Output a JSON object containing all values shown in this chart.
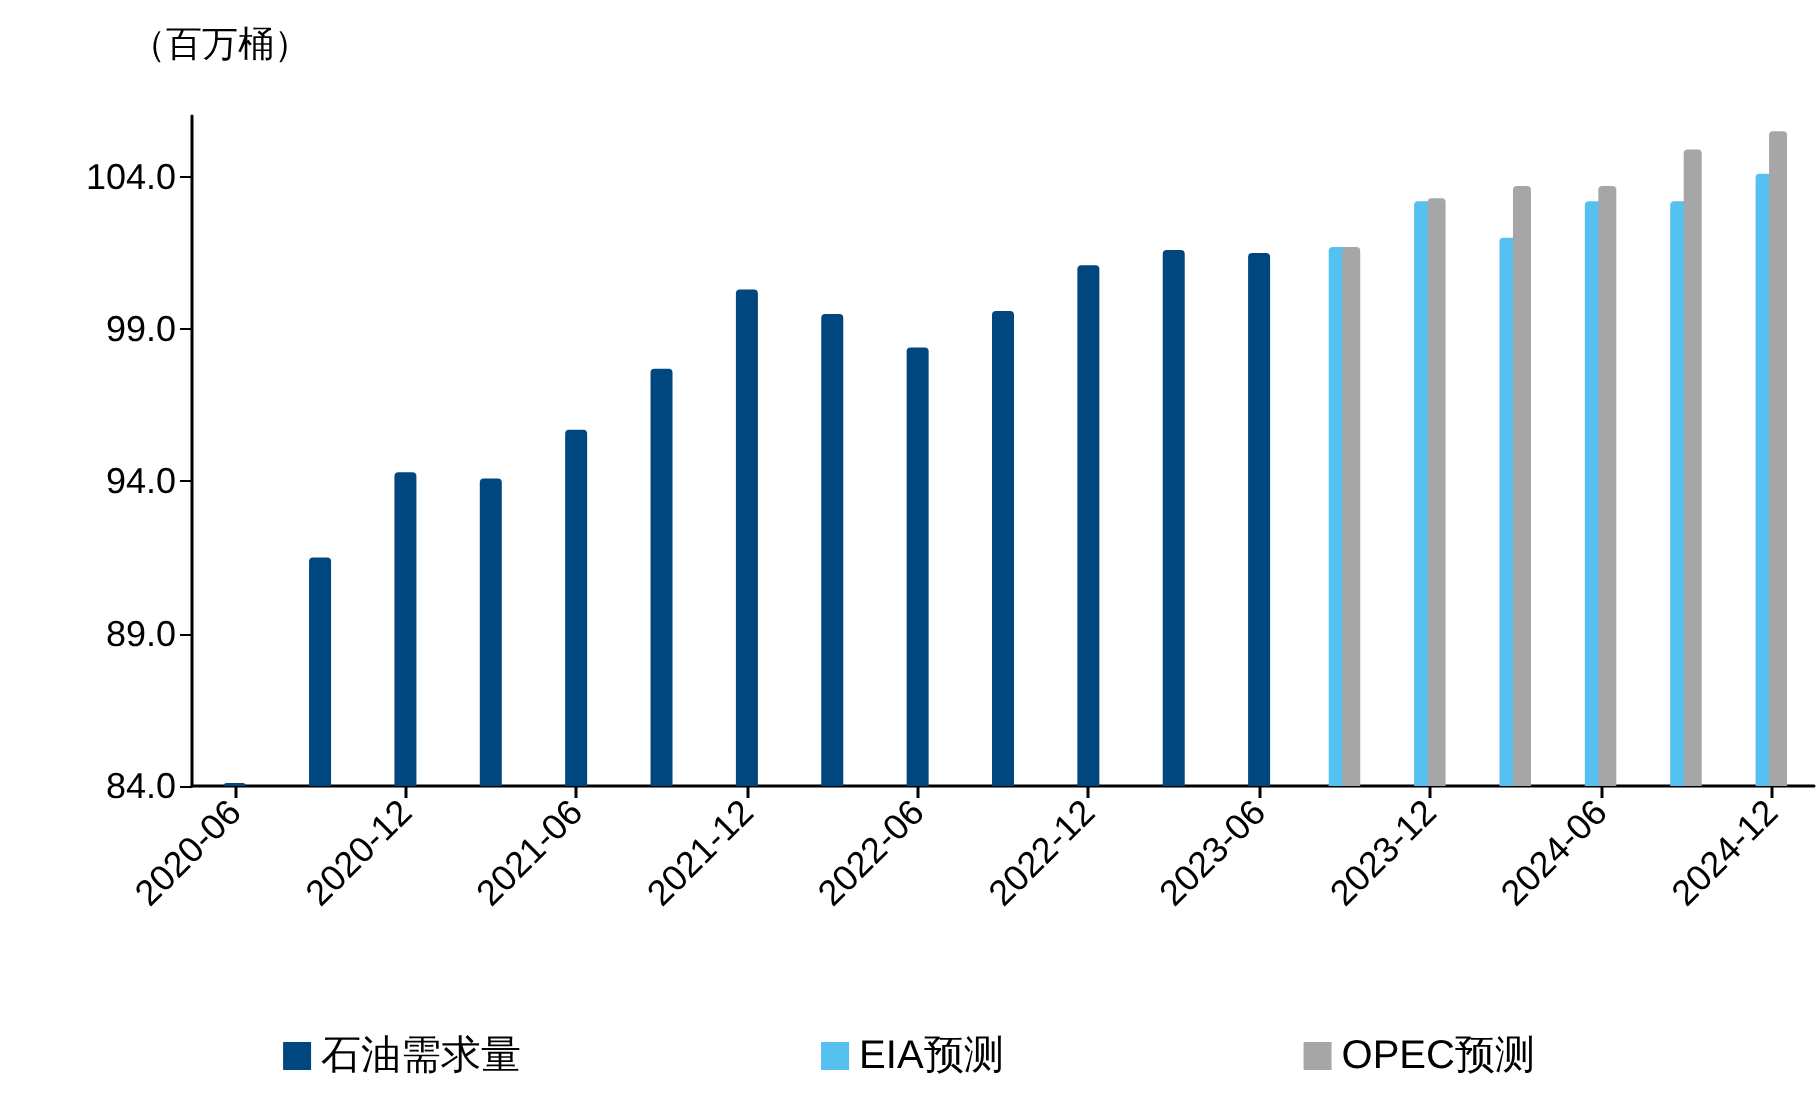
{
  "chart_data": {
    "type": "bar",
    "ylabel": "（百万桶）",
    "categories": [
      "2020-06",
      null,
      "2020-12",
      null,
      "2021-06",
      null,
      "2021-12",
      null,
      "2022-06",
      null,
      "2022-12",
      null,
      "2023-06",
      null,
      "2023-12",
      null,
      "2024-06",
      null,
      "2024-12"
    ],
    "series": [
      {
        "name": "石油需求量",
        "color": "#00467f",
        "values": [
          84.1,
          91.5,
          94.3,
          94.1,
          95.7,
          97.7,
          100.3,
          99.5,
          98.4,
          99.6,
          101.1,
          101.6,
          101.5,
          null,
          null,
          null,
          null,
          null,
          null
        ]
      },
      {
        "name": "EIA预测",
        "color": "#55c1f0",
        "values": [
          null,
          null,
          null,
          null,
          null,
          null,
          null,
          null,
          null,
          null,
          null,
          null,
          null,
          101.7,
          103.2,
          102.0,
          103.2,
          103.2,
          104.1
        ]
      },
      {
        "name": "OPEC预测",
        "color": "#a6a6a6",
        "values": [
          null,
          null,
          null,
          null,
          null,
          null,
          null,
          null,
          null,
          null,
          null,
          null,
          null,
          101.7,
          103.3,
          103.7,
          103.7,
          104.9,
          105.5
        ]
      }
    ],
    "ylim": [
      84,
      106
    ],
    "yticks": [
      {
        "value": 84,
        "label": "84.0"
      },
      {
        "value": 89,
        "label": "89.0"
      },
      {
        "value": 94,
        "label": "94.0"
      },
      {
        "value": 99,
        "label": "99.0"
      },
      {
        "value": 104,
        "label": "104.0"
      }
    ],
    "grid": false,
    "legend": "bottom"
  }
}
